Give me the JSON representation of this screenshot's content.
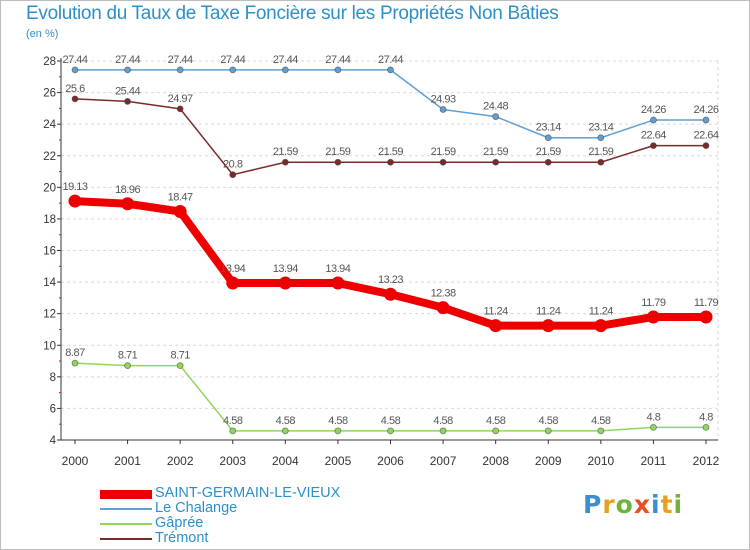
{
  "header": {
    "title": "Evolution du Taux de Taxe Foncière sur les Propriétés Non Bâties",
    "unit": "(en %)"
  },
  "logo": {
    "letters": [
      "P",
      "r",
      "o",
      "x",
      "i",
      "t",
      "i"
    ],
    "colors": [
      "#3a8fd0",
      "#e8a020",
      "#6fb33a",
      "#e84f20",
      "#3a8fd0",
      "#e8a020",
      "#6fb33a"
    ]
  },
  "chart_data": {
    "type": "line",
    "title": "Evolution du Taux de Taxe Foncière sur les Propriétés Non Bâties",
    "ylabel": "(en %)",
    "xlabel": "",
    "x": [
      "2000",
      "2001",
      "2002",
      "2003",
      "2004",
      "2005",
      "2006",
      "2007",
      "2008",
      "2009",
      "2010",
      "2011",
      "2012"
    ],
    "ylim": [
      4,
      28
    ],
    "yticks": [
      4,
      6,
      8,
      10,
      12,
      14,
      16,
      18,
      20,
      22,
      24,
      26,
      28
    ],
    "grid": "horizontal",
    "legend_position": "bottom-left",
    "series": [
      {
        "name": "SAINT-GERMAIN-LE-VIEUX",
        "color": "#ee0000",
        "bold": true,
        "values": [
          19.13,
          18.96,
          18.47,
          13.94,
          13.94,
          13.94,
          13.23,
          12.38,
          11.24,
          11.24,
          11.24,
          11.79,
          11.79
        ],
        "labels": [
          "19.13",
          "18.96",
          "18.47",
          "13.94",
          "13.94",
          "13.94",
          "13.23",
          "12.38",
          "11.24",
          "11.24",
          "11.24",
          "11.79",
          "11.79"
        ]
      },
      {
        "name": "Le Chalange",
        "color": "#5f9fd3",
        "bold": false,
        "values": [
          27.44,
          27.44,
          27.44,
          27.44,
          27.44,
          27.44,
          27.44,
          24.93,
          24.48,
          23.14,
          23.14,
          24.26,
          24.26
        ],
        "labels": [
          "27.44",
          "27.44",
          "27.44",
          "27.44",
          "27.44",
          "27.44",
          "27.44",
          "24.93",
          "24.48",
          "23.14",
          "23.14",
          "24.26",
          "24.26"
        ]
      },
      {
        "name": "Gâprée",
        "color": "#8fd65a",
        "bold": false,
        "values": [
          8.87,
          8.71,
          8.71,
          4.58,
          4.58,
          4.58,
          4.58,
          4.58,
          4.58,
          4.58,
          4.58,
          4.8,
          4.8
        ],
        "labels": [
          "8.87",
          "8.71",
          "8.71",
          "4.58",
          "4.58",
          "4.58",
          "4.58",
          "4.58",
          "4.58",
          "4.58",
          "4.58",
          "4.8",
          "4.8"
        ]
      },
      {
        "name": "Trémont",
        "color": "#7a2a2a",
        "bold": false,
        "values": [
          25.6,
          25.44,
          24.97,
          20.8,
          21.59,
          21.59,
          21.59,
          21.59,
          21.59,
          21.59,
          21.59,
          22.64,
          22.64
        ],
        "labels": [
          "25.6",
          "25.44",
          "24.97",
          "20.8",
          "21.59",
          "21.59",
          "21.59",
          "21.59",
          "21.59",
          "21.59",
          "21.59",
          "22.64",
          "22.64"
        ]
      }
    ]
  }
}
